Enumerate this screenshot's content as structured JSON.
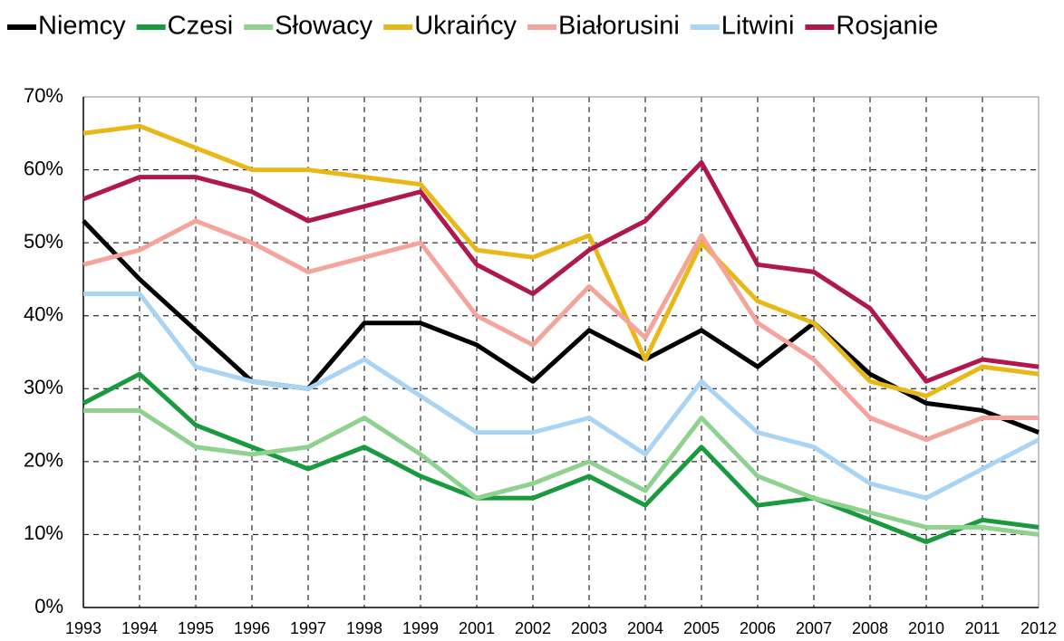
{
  "chart_data": {
    "type": "line",
    "categories": [
      "1993",
      "1994",
      "1995",
      "1996",
      "1997",
      "1998",
      "1999",
      "2001",
      "2002",
      "2003",
      "2004",
      "2005",
      "2006",
      "2007",
      "2008",
      "2010",
      "2011",
      "2012"
    ],
    "series": [
      {
        "name": "Niemcy",
        "color": "#000000",
        "values": [
          53,
          45,
          38,
          31,
          30,
          39,
          39,
          36,
          31,
          38,
          34,
          38,
          33,
          39,
          32,
          28,
          27,
          24
        ]
      },
      {
        "name": "Czesi",
        "color": "#1a9a3e",
        "values": [
          28,
          32,
          25,
          22,
          19,
          22,
          18,
          15,
          15,
          18,
          14,
          22,
          14,
          15,
          12,
          9,
          12,
          11
        ]
      },
      {
        "name": "Słowacy",
        "color": "#8fd18f",
        "values": [
          27,
          27,
          22,
          21,
          22,
          26,
          21,
          15,
          17,
          20,
          16,
          26,
          18,
          15,
          13,
          11,
          11,
          10
        ]
      },
      {
        "name": "Ukraińcy",
        "color": "#e8b818",
        "values": [
          65,
          66,
          63,
          60,
          60,
          59,
          58,
          49,
          48,
          51,
          34,
          50,
          42,
          39,
          31,
          29,
          33,
          32
        ]
      },
      {
        "name": "Białorusini",
        "color": "#f4a49a",
        "values": [
          47,
          49,
          53,
          50,
          46,
          48,
          50,
          40,
          36,
          44,
          37,
          51,
          39,
          34,
          26,
          23,
          26,
          26
        ]
      },
      {
        "name": "Litwini",
        "color": "#aad4f4",
        "values": [
          43,
          43,
          33,
          31,
          30,
          34,
          29,
          24,
          24,
          26,
          21,
          31,
          24,
          22,
          17,
          15,
          19,
          23
        ]
      },
      {
        "name": "Rosjanie",
        "color": "#b0174f",
        "values": [
          56,
          59,
          59,
          57,
          53,
          55,
          57,
          47,
          43,
          49,
          53,
          61,
          47,
          46,
          41,
          31,
          34,
          33
        ]
      }
    ],
    "ylim": [
      0,
      70
    ],
    "yticks": [
      {
        "value": 0,
        "label": "0%"
      },
      {
        "value": 10,
        "label": "10%"
      },
      {
        "value": 20,
        "label": "20%"
      },
      {
        "value": 30,
        "label": "30%"
      },
      {
        "value": 40,
        "label": "40%"
      },
      {
        "value": 50,
        "label": "50%"
      },
      {
        "value": 60,
        "label": "60%"
      },
      {
        "value": 70,
        "label": "70%"
      }
    ],
    "grid": true,
    "legend": "top"
  }
}
